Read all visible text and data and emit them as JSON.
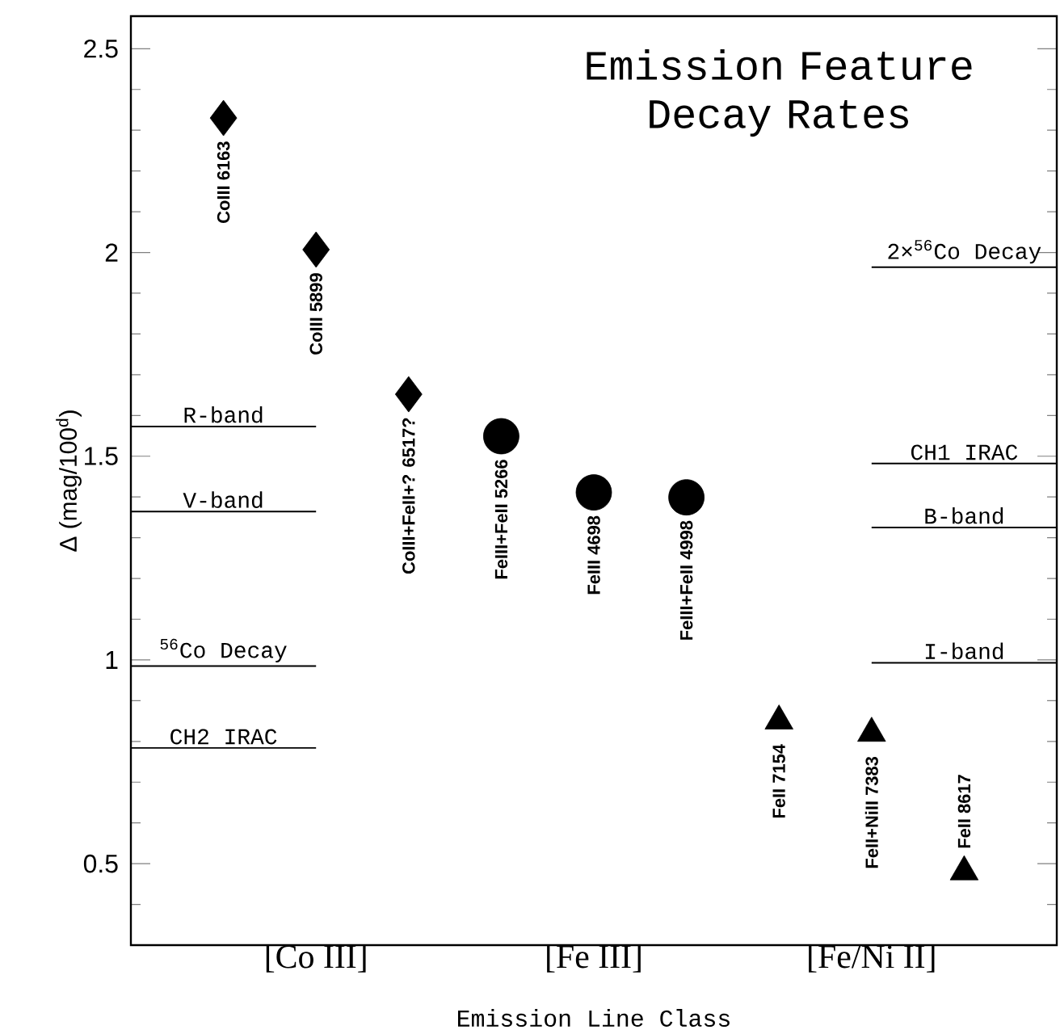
{
  "chart_data": {
    "type": "scatter",
    "title": "Emission Feature Decay Rates",
    "xlabel": "Emission Line Class",
    "ylabel": "Δ  (mag/100$^{d}$)",
    "categories": [
      null,
      null,
      "[Co III]",
      null,
      null,
      "[Fe III]",
      null,
      null,
      "[Fe/Ni II]",
      null,
      null
    ],
    "ylim": [
      0.3,
      2.58
    ],
    "yticks": [
      {
        "value": 0.4,
        "label": null
      },
      0.5,
      {
        "value": 0.6,
        "label": null
      },
      {
        "value": 0.7,
        "label": null
      },
      {
        "value": 0.8,
        "label": null
      },
      {
        "value": 0.9,
        "label": null
      },
      1,
      {
        "value": 1.1,
        "label": null
      },
      {
        "value": 1.2,
        "label": null
      },
      {
        "value": 1.3,
        "label": null
      },
      {
        "value": 1.4,
        "label": null
      },
      1.5,
      {
        "value": 1.6,
        "label": null
      },
      {
        "value": 1.7,
        "label": null
      },
      {
        "value": 1.8,
        "label": null
      },
      {
        "value": 1.9,
        "label": null
      },
      2,
      {
        "value": 2.1,
        "label": null
      },
      {
        "value": 2.2,
        "label": null
      },
      {
        "value": 2.3,
        "label": null
      },
      {
        "value": 2.4,
        "label": null
      },
      2.5
    ],
    "series": [
      {
        "name": "CoIII 6163",
        "marker": "diamond",
        "color": "#000000",
        "values": [
          null,
          2.33,
          null,
          null,
          null,
          null,
          null,
          null,
          null,
          null,
          null
        ]
      },
      {
        "name": "CoIII 5899",
        "marker": "diamond",
        "color": "#000000",
        "values": [
          null,
          null,
          2.007,
          null,
          null,
          null,
          null,
          null,
          null,
          null,
          null
        ]
      },
      {
        "name": "CoIII+FeII+? 6517?",
        "marker": "diamond",
        "color": "#000000",
        "values": [
          null,
          null,
          null,
          1.652,
          null,
          null,
          null,
          null,
          null,
          null,
          null
        ]
      },
      {
        "name": "FeIII+FeII 5266",
        "marker": "circle",
        "color": "#000000",
        "values": [
          null,
          null,
          null,
          null,
          1.549,
          null,
          null,
          null,
          null,
          null,
          null
        ]
      },
      {
        "name": "FeIII 4698",
        "marker": "circle",
        "color": "#000000",
        "values": [
          null,
          null,
          null,
          null,
          null,
          1.411,
          null,
          null,
          null,
          null,
          null
        ]
      },
      {
        "name": "FeIII+FeII 4998",
        "marker": "circle",
        "color": "#000000",
        "values": [
          null,
          null,
          null,
          null,
          null,
          null,
          1.399,
          null,
          null,
          null,
          null
        ]
      },
      {
        "name": "FeII 7154",
        "marker": "triangle",
        "color": "#000000",
        "values": [
          null,
          null,
          null,
          null,
          null,
          null,
          null,
          0.85,
          null,
          null,
          null
        ]
      },
      {
        "name": "FeII+NiII 7383",
        "marker": "triangle",
        "color": "#000000",
        "values": [
          null,
          null,
          null,
          null,
          null,
          null,
          null,
          null,
          0.82,
          null,
          null
        ]
      },
      {
        "name": "FeII 8617",
        "marker": "triangle",
        "color": "#000000",
        "values": [
          null,
          null,
          null,
          null,
          null,
          null,
          null,
          null,
          null,
          0.48,
          null
        ]
      },
      {
        "type": "line",
        "name": "R-band",
        "color": "#000000",
        "values": [
          1.573,
          1.573,
          1.573,
          null,
          null,
          null,
          null,
          null,
          null,
          null,
          null
        ]
      },
      {
        "type": "line",
        "name": "V-band",
        "color": "#000000",
        "values": [
          1.364,
          1.364,
          1.364,
          null,
          null,
          null,
          null,
          null,
          null,
          null,
          null
        ]
      },
      {
        "type": "line",
        "name": "$^{56}$Co Decay",
        "color": "#000000",
        "values": [
          0.985,
          0.985,
          0.985,
          null,
          null,
          null,
          null,
          null,
          null,
          null,
          null
        ]
      },
      {
        "type": "line",
        "name": "CH2 IRAC",
        "color": "#000000",
        "values": [
          0.784,
          0.784,
          0.784,
          null,
          null,
          null,
          null,
          null,
          null,
          null,
          null
        ]
      },
      {
        "type": "line",
        "name": "2×$^{56}$Co Decay",
        "color": "#000000",
        "values": [
          null,
          null,
          null,
          null,
          null,
          null,
          null,
          null,
          1.964,
          1.964,
          1.964
        ]
      },
      {
        "type": "line",
        "name": "CH1 IRAC",
        "color": "#000000",
        "values": [
          null,
          null,
          null,
          null,
          null,
          null,
          null,
          null,
          1.482,
          1.482,
          1.482
        ]
      },
      {
        "type": "line",
        "name": "B-band",
        "color": "#000000",
        "values": [
          null,
          null,
          null,
          null,
          null,
          null,
          null,
          null,
          1.325,
          1.325,
          1.325
        ]
      },
      {
        "type": "line",
        "name": "I-band",
        "color": "#000000",
        "values": [
          null,
          null,
          null,
          null,
          null,
          null,
          null,
          null,
          0.993,
          0.993,
          0.993
        ]
      }
    ]
  }
}
